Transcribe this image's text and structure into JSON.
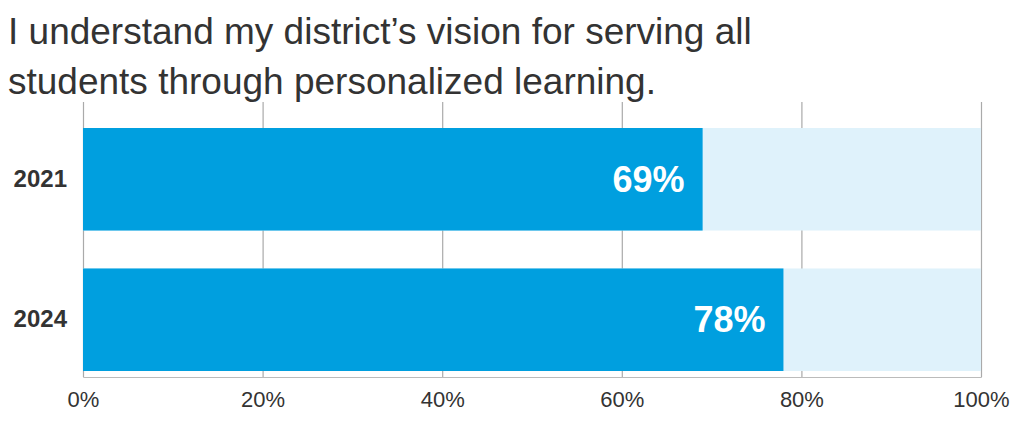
{
  "chart_data": {
    "type": "bar",
    "orientation": "horizontal",
    "title": "I understand my district’s vision for serving all students through personalized learning.",
    "categories": [
      "2021",
      "2024"
    ],
    "values": [
      69,
      78
    ],
    "value_labels": [
      "69%",
      "78%"
    ],
    "data_labels": true,
    "color": "#009fdf",
    "xlim": [
      0,
      100
    ],
    "xticks": [
      {
        "value": 0,
        "label": "0%"
      },
      {
        "value": 20,
        "label": "20%"
      },
      {
        "value": 40,
        "label": "40%"
      },
      {
        "value": 60,
        "label": "60%"
      },
      {
        "value": 80,
        "label": "80%"
      },
      {
        "value": 100,
        "label": "100%"
      }
    ],
    "grid": true
  }
}
